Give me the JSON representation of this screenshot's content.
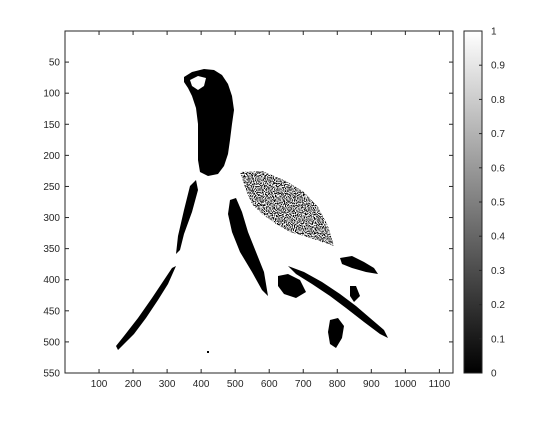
{
  "chart_data": {
    "type": "heatmap",
    "colormap": "gray",
    "image_width": 1140,
    "image_height": 550,
    "xlim": [
      0,
      1140
    ],
    "ylim": [
      550,
      0
    ],
    "x_ticks": [
      "100",
      "200",
      "300",
      "400",
      "500",
      "600",
      "700",
      "800",
      "900",
      "1000",
      "1100"
    ],
    "y_ticks": [
      "50",
      "100",
      "150",
      "200",
      "250",
      "300",
      "350",
      "400",
      "450",
      "500",
      "550"
    ],
    "colorbar": {
      "range": [
        0,
        1
      ],
      "ticks": [
        "0",
        "0.1",
        "0.2",
        "0.3",
        "0.4",
        "0.5",
        "0.6",
        "0.7",
        "0.8",
        "0.9",
        "1"
      ]
    },
    "grid": false,
    "colors": {
      "axis": "#262626",
      "high": "#ffffff",
      "low": "#000000"
    }
  }
}
